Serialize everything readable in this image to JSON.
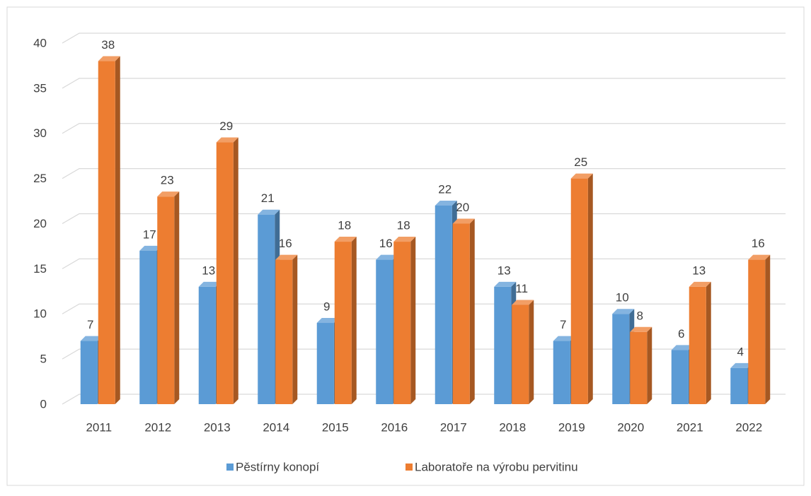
{
  "chart_data": {
    "type": "bar3d",
    "categories": [
      "2011",
      "2012",
      "2013",
      "2014",
      "2015",
      "2016",
      "2017",
      "2018",
      "2019",
      "2020",
      "2021",
      "2022"
    ],
    "series": [
      {
        "name": "Pěstírny konopí",
        "color": "#5b9bd5",
        "values": [
          7,
          17,
          13,
          21,
          9,
          16,
          22,
          13,
          7,
          10,
          6,
          4
        ]
      },
      {
        "name": "Laboratoře na výrobu pervitinu",
        "color": "#ed7d31",
        "values": [
          38,
          23,
          29,
          16,
          18,
          18,
          20,
          11,
          25,
          8,
          13,
          16
        ]
      }
    ],
    "ylim": [
      0,
      40
    ],
    "yticks": [
      0,
      5,
      10,
      15,
      20,
      25,
      30,
      35,
      40
    ],
    "grid": true,
    "legend": "bottom"
  }
}
